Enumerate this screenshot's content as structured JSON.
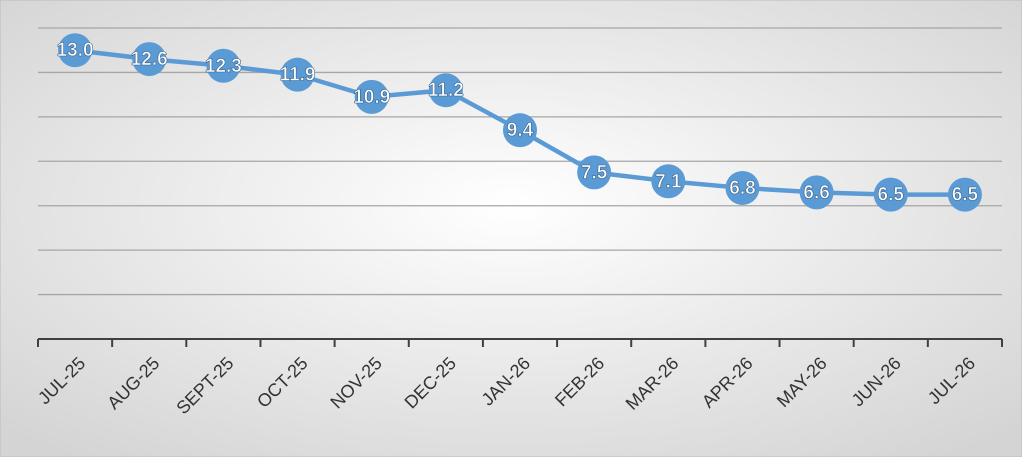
{
  "chart_data": {
    "type": "line",
    "categories": [
      "JUL-25",
      "AUG-25",
      "SEPT-25",
      "OCT-25",
      "NOV-25",
      "DEC-25",
      "JAN-26",
      "FEB-26",
      "MAR-26",
      "APR-26",
      "MAY-26",
      "JUN-26",
      "JUL-26"
    ],
    "series": [
      {
        "color": "#5b9bd5",
        "values": [
          13.0,
          12.6,
          12.3,
          11.9,
          10.9,
          11.2,
          9.4,
          7.5,
          7.1,
          6.8,
          6.6,
          6.5,
          6.5
        ],
        "value_labels": [
          "13.0",
          "12.6",
          "12.3",
          "11.9",
          "10.9",
          "11.2",
          "9.4",
          "7.5",
          "7.1",
          "6.8",
          "6.6",
          "6.5",
          "6.5"
        ]
      }
    ],
    "ylim": [
      0,
      15
    ],
    "yticks": [
      2,
      4,
      6,
      8,
      10,
      12,
      14
    ],
    "grid": true
  }
}
